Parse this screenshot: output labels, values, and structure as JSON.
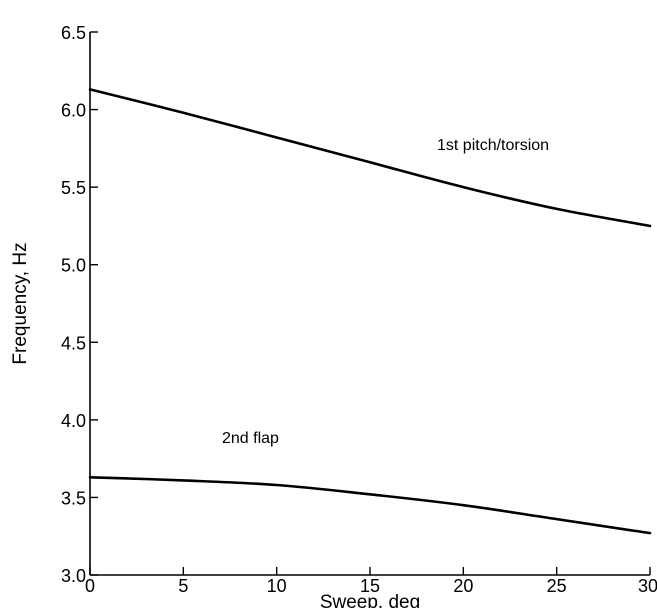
{
  "chart_data": {
    "type": "line",
    "xlabel": "Sweep, deg",
    "ylabel": "Frequency, Hz",
    "xlim": [
      0,
      30
    ],
    "ylim": [
      3.0,
      6.5
    ],
    "x_ticks": [
      0,
      5,
      10,
      15,
      20,
      25,
      30
    ],
    "y_ticks": [
      3.0,
      3.5,
      4.0,
      4.5,
      5.0,
      5.5,
      6.0,
      6.5
    ],
    "x_tick_labels": [
      "0",
      "5",
      "10",
      "15",
      "20",
      "25",
      "30"
    ],
    "y_tick_labels": [
      "3.0",
      "3.5",
      "4.0",
      "4.5",
      "5.0",
      "5.5",
      "6.0",
      "6.5"
    ],
    "grid": false,
    "series": [
      {
        "name": "1st pitch/torsion",
        "x": [
          0,
          5,
          10,
          15,
          20,
          25,
          30
        ],
        "values": [
          6.13,
          5.98,
          5.82,
          5.66,
          5.5,
          5.36,
          5.25
        ]
      },
      {
        "name": "2nd flap",
        "x": [
          0,
          5,
          10,
          15,
          20,
          25,
          30
        ],
        "values": [
          3.63,
          3.61,
          3.58,
          3.52,
          3.45,
          3.36,
          3.27
        ]
      }
    ]
  }
}
